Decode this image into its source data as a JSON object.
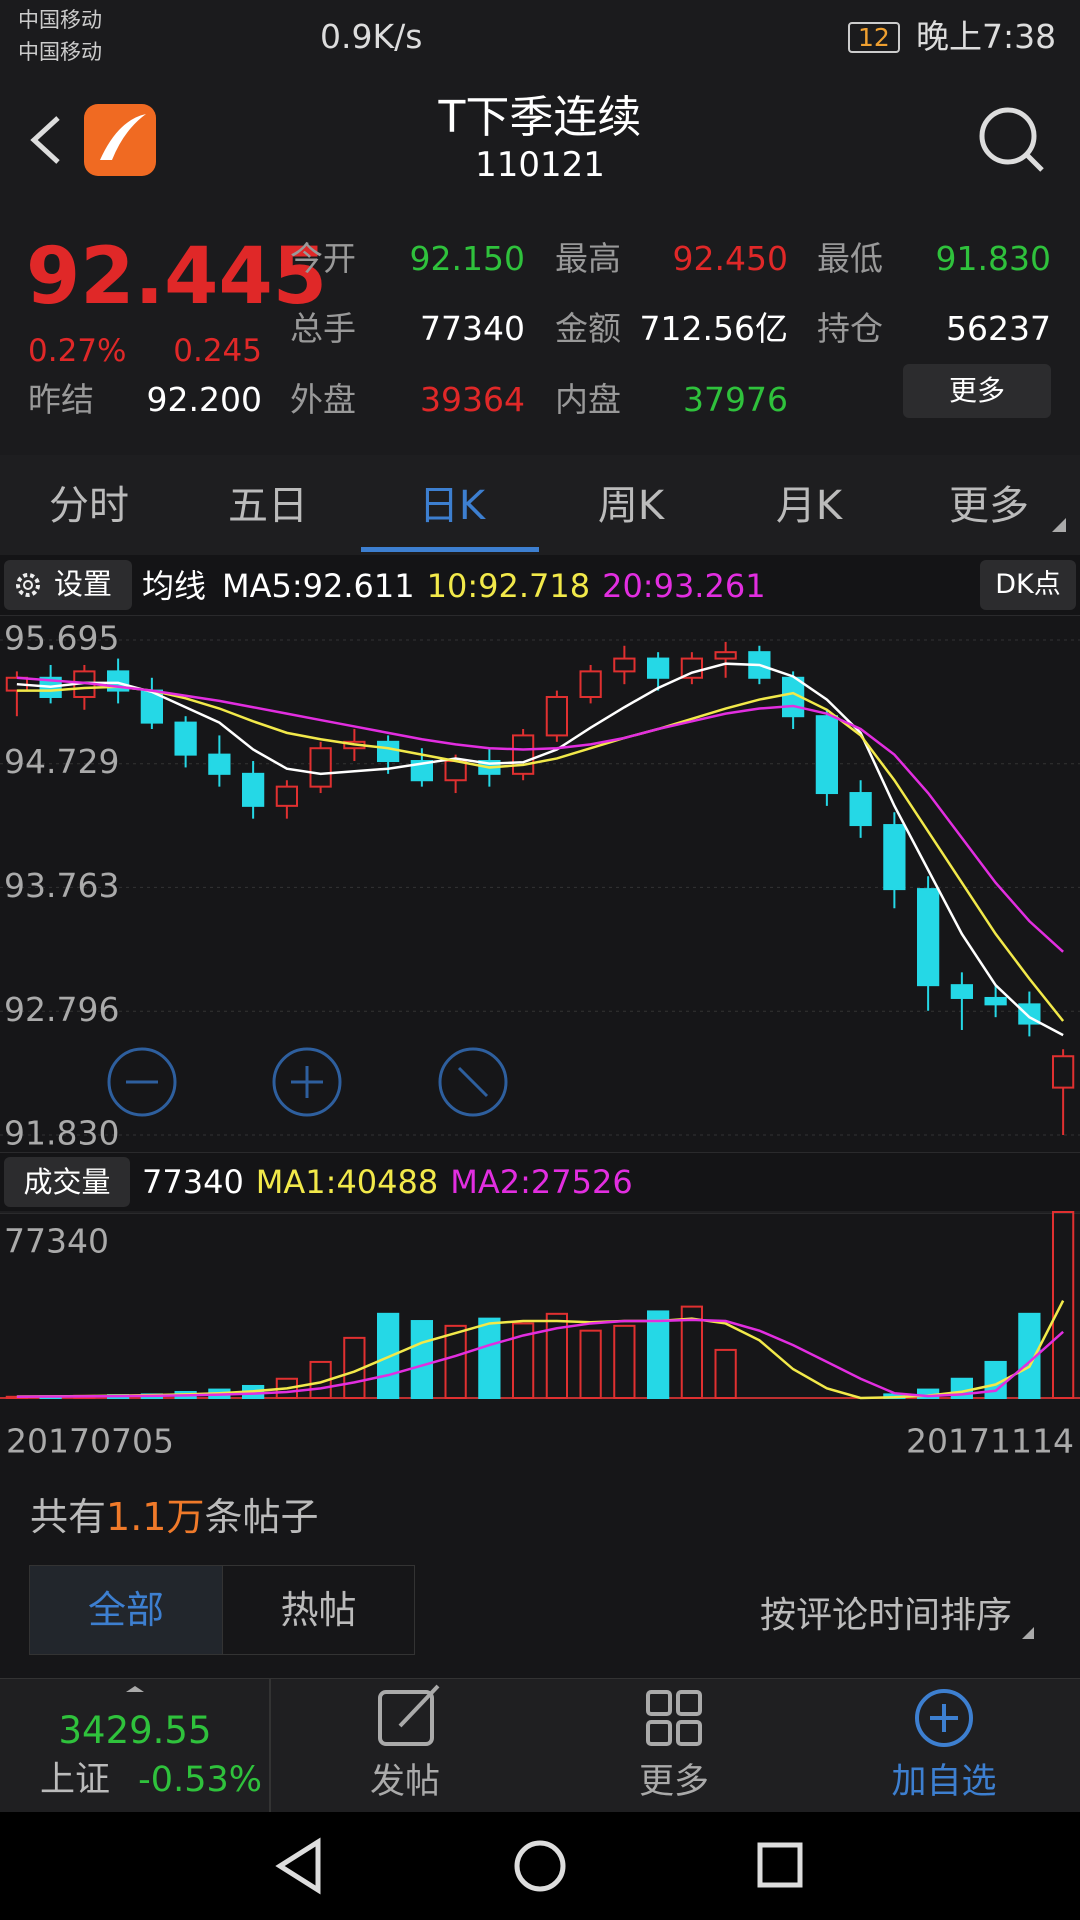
{
  "status_bar": {
    "carrier_1": "中国移动",
    "carrier_2": "中国移动",
    "speed": "0.9K/s",
    "battery": "12",
    "time": "晚上7:38"
  },
  "header": {
    "title": "T下季连续",
    "code": "110121"
  },
  "quote": {
    "price": "92.445",
    "change_pct": "0.27%",
    "change": "0.245",
    "prev_settle_label": "昨结",
    "prev_settle": "92.200",
    "fields": [
      {
        "label": "今开",
        "value": "92.150",
        "color": "#2fc23c"
      },
      {
        "label": "最高",
        "value": "92.450",
        "color": "#e02828"
      },
      {
        "label": "最低",
        "value": "91.830",
        "color": "#2fc23c"
      },
      {
        "label": "总手",
        "value": "77340",
        "color": "#ffffff"
      },
      {
        "label": "金额",
        "value": "712.56亿",
        "color": "#ffffff"
      },
      {
        "label": "持仓",
        "value": "56237",
        "color": "#ffffff"
      },
      {
        "label": "外盘",
        "value": "39364",
        "color": "#e02828"
      },
      {
        "label": "内盘",
        "value": "37976",
        "color": "#2fc23c"
      }
    ],
    "more": "更多"
  },
  "tabs": {
    "items": [
      "分时",
      "五日",
      "日K",
      "周K",
      "月K",
      "更多"
    ],
    "active": 2
  },
  "chart_data": [
    {
      "type": "candlestick",
      "header_button": "设置",
      "header_title": "均线",
      "header_texts": [
        "MA5:92.611",
        "10:92.718",
        "20:93.261"
      ],
      "header_colors": [
        "#ffffff",
        "#f2e94a",
        "#e22ee0"
      ],
      "up_color": "#e03030",
      "down_color": "#25d8e6",
      "open": [
        95.3,
        95.4,
        95.25,
        95.45,
        95.3,
        95.05,
        94.8,
        94.65,
        94.4,
        94.55,
        94.85,
        94.9,
        94.75,
        94.6,
        94.75,
        94.65,
        94.95,
        95.25,
        95.45,
        95.55,
        95.4,
        95.55,
        95.6,
        95.4,
        95.1,
        94.5,
        94.25,
        93.75,
        93.0,
        92.9,
        92.85,
        92.2
      ],
      "high": [
        95.45,
        95.5,
        95.5,
        95.55,
        95.4,
        95.1,
        94.95,
        94.75,
        94.6,
        94.9,
        95.0,
        94.95,
        94.85,
        94.8,
        94.85,
        95.0,
        95.3,
        95.5,
        95.65,
        95.6,
        95.6,
        95.68,
        95.65,
        95.45,
        95.15,
        94.6,
        94.35,
        93.85,
        93.1,
        93.0,
        92.95,
        92.5
      ],
      "low": [
        95.1,
        95.2,
        95.15,
        95.2,
        95.0,
        94.7,
        94.55,
        94.3,
        94.3,
        94.5,
        94.75,
        94.65,
        94.55,
        94.5,
        94.55,
        94.6,
        94.9,
        95.2,
        95.35,
        95.3,
        95.35,
        95.4,
        95.35,
        95.0,
        94.4,
        94.15,
        93.6,
        92.8,
        92.65,
        92.75,
        92.6,
        91.83
      ],
      "close": [
        95.4,
        95.25,
        95.45,
        95.3,
        95.05,
        94.8,
        94.65,
        94.4,
        94.55,
        94.85,
        94.9,
        94.75,
        94.6,
        94.75,
        94.65,
        94.95,
        95.25,
        95.45,
        95.55,
        95.4,
        95.55,
        95.6,
        95.4,
        95.1,
        94.5,
        94.25,
        93.75,
        93.0,
        92.9,
        92.85,
        92.7,
        92.445
      ],
      "series": [
        {
          "color": "#ffffff",
          "values": [
            95.35,
            95.33,
            95.36,
            95.36,
            95.29,
            95.17,
            95.05,
            94.84,
            94.69,
            94.65,
            94.67,
            94.69,
            94.73,
            94.77,
            94.73,
            94.74,
            94.84,
            95.01,
            95.17,
            95.32,
            95.44,
            95.51,
            95.5,
            95.41,
            95.23,
            94.97,
            94.4,
            93.9,
            93.4,
            93.0,
            92.75,
            92.61
          ]
        },
        {
          "color": "#f2e94a",
          "values": [
            95.3,
            95.3,
            95.32,
            95.33,
            95.3,
            95.24,
            95.16,
            95.06,
            94.97,
            94.92,
            94.88,
            94.85,
            94.8,
            94.75,
            94.7,
            94.72,
            94.77,
            94.85,
            94.93,
            95.0,
            95.08,
            95.16,
            95.23,
            95.28,
            95.15,
            94.95,
            94.6,
            94.2,
            93.8,
            93.4,
            93.05,
            92.72
          ]
        },
        {
          "color": "#e22ee0",
          "values": [
            95.4,
            95.38,
            95.36,
            95.33,
            95.3,
            95.26,
            95.22,
            95.17,
            95.12,
            95.07,
            95.02,
            94.97,
            94.92,
            94.88,
            94.85,
            94.84,
            94.85,
            94.88,
            94.93,
            95.0,
            95.06,
            95.12,
            95.16,
            95.18,
            95.12,
            95.0,
            94.8,
            94.5,
            94.15,
            93.8,
            93.5,
            93.26
          ]
        }
      ],
      "ylim": [
        91.83,
        95.695
      ],
      "yticks": [
        95.695,
        94.729,
        93.763,
        92.796,
        {
          "value": 91.83,
          "label": "91.830"
        }
      ],
      "grid": true
    },
    {
      "type": "bar",
      "header_button": "成交量",
      "header_texts": [
        "77340",
        "MA1:40488",
        "MA2:27526"
      ],
      "header_colors": [
        "#ffffff",
        "#f2e94a",
        "#e22ee0"
      ],
      "values": [
        500,
        700,
        900,
        1200,
        1500,
        2500,
        3500,
        5000,
        8000,
        15000,
        25000,
        35000,
        32000,
        30000,
        33000,
        31000,
        35000,
        28000,
        30000,
        36000,
        38000,
        20000,
        0,
        0,
        0,
        0,
        1500,
        3500,
        8000,
        15000,
        35000,
        77340
      ],
      "series": [
        {
          "color": "#f2e94a",
          "values": [
            600,
            700,
            800,
            1000,
            1200,
            1500,
            2000,
            2800,
            4000,
            6500,
            11000,
            17000,
            23000,
            27000,
            31000,
            32000,
            32000,
            31500,
            32000,
            32000,
            33000,
            31000,
            24000,
            12000,
            4000,
            0,
            300,
            1000,
            2600,
            5600,
            13000,
            40488
          ]
        },
        {
          "color": "#e22ee0",
          "values": [
            500,
            600,
            700,
            800,
            900,
            1100,
            1400,
            1800,
            2500,
            4000,
            6500,
            9500,
            13500,
            17500,
            22000,
            26000,
            29000,
            31000,
            32000,
            32000,
            32500,
            32000,
            28000,
            22000,
            15000,
            8000,
            2000,
            800,
            1500,
            3000,
            15000,
            27526
          ]
        }
      ],
      "ylim": [
        0,
        77340
      ],
      "yticks": [
        77340
      ],
      "xlabels": [
        "20170705",
        "20171114"
      ]
    }
  ],
  "posts": {
    "prefix": "共有",
    "count": "1.1万",
    "suffix": "条帖子",
    "filters": [
      "全部",
      "热帖"
    ],
    "sort": "按评论时间排序"
  },
  "bottom_bar": {
    "index_value": "3429.55",
    "index_name": "上证",
    "index_change": "-0.53%",
    "actions": [
      "发帖",
      "更多",
      "加自选"
    ]
  }
}
